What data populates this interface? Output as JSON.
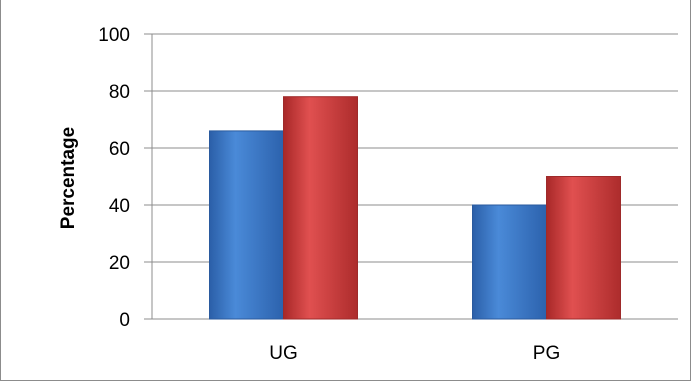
{
  "chart_data": {
    "type": "bar",
    "categories": [
      "UG",
      "PG"
    ],
    "series": [
      {
        "color": "#3c78c8",
        "values": [
          66,
          78
        ]
      },
      {
        "color": "#d04040",
        "values": [
          40,
          50
        ]
      }
    ],
    "bars_by_category": [
      [
        66,
        78
      ],
      [
        40,
        50
      ]
    ],
    "ylabel": "Percentage",
    "xlabel": "",
    "title": "",
    "ylim": [
      0,
      100
    ],
    "yticks": [
      0,
      20,
      40,
      60,
      80,
      100
    ],
    "grid": true,
    "legend": "none"
  },
  "colors": {
    "blue_bar": "#3c78c8",
    "red_bar": "#d04040",
    "grid": "#8c8c8c"
  }
}
